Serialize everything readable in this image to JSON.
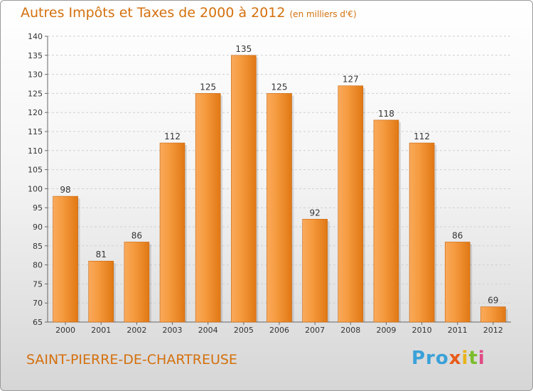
{
  "title": "Autres Impôts et Taxes de 2000 à 2012",
  "unit": "(en milliers d'€)",
  "city": "SAINT-PIERRE-DE-CHARTREUSE",
  "logo": {
    "part1": "Pro",
    "part2": "x",
    "part3": "i",
    "part4": "t",
    "part5": "i"
  },
  "colors": {
    "bar": "#f0861c",
    "bar_light": "#f9aa5c",
    "title": "#d4700d"
  },
  "chart_data": {
    "type": "bar",
    "categories": [
      "2000",
      "2001",
      "2002",
      "2003",
      "2004",
      "2005",
      "2006",
      "2007",
      "2008",
      "2009",
      "2010",
      "2011",
      "2012"
    ],
    "values": [
      98,
      81,
      86,
      112,
      125,
      135,
      125,
      92,
      127,
      118,
      112,
      86,
      69
    ],
    "ylim": [
      65,
      140
    ],
    "yticks": [
      65,
      70,
      75,
      80,
      85,
      90,
      95,
      100,
      105,
      110,
      115,
      120,
      125,
      130,
      135,
      140
    ],
    "grid": true,
    "data_labels": true
  }
}
